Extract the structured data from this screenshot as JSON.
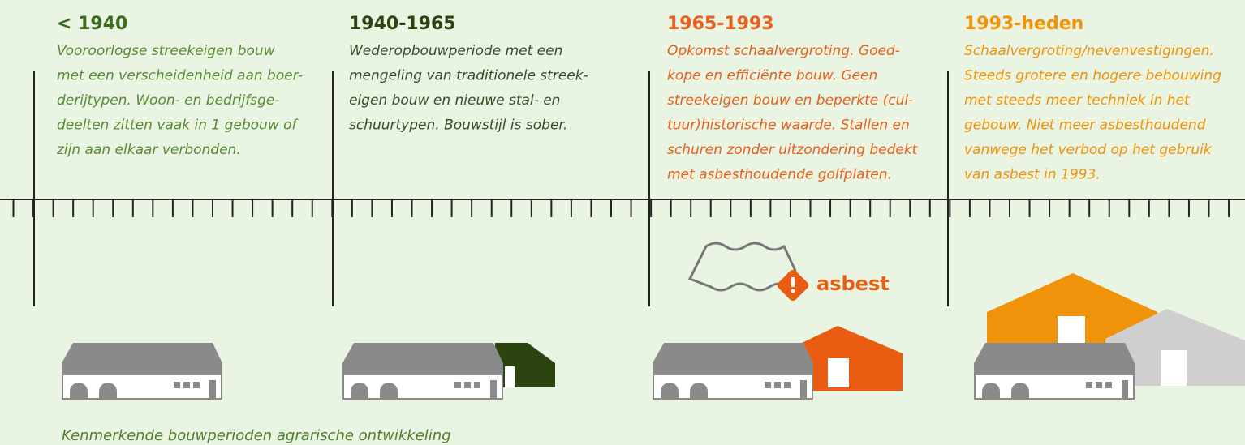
{
  "periods": [
    {
      "title": "< 1940",
      "lines": [
        "Vooroorlogse streekeigen bouw",
        "met een verscheidenheid aan boer-",
        "derijtypen. Woon- en bedrijfsge-",
        "deelten zitten vaak in 1 gebouw of",
        "zijn aan elkaar verbonden."
      ]
    },
    {
      "title": "1940-1965",
      "lines": [
        "Wederopbouwperiode met een",
        "mengeling van traditionele streek-",
        "eigen bouw en nieuwe stal- en",
        "schuurtypen. Bouwstijl is sober."
      ]
    },
    {
      "title": "1965-1993",
      "lines": [
        "Opkomst schaalvergroting. Goed-",
        "kope en efficiënte bouw. Geen",
        "streekeigen bouw en beperkte (cul-",
        "tuur)historische waarde. Stallen en",
        "schuren zonder uitzondering bedekt",
        "met asbesthoudende golfplaten."
      ]
    },
    {
      "title": "1993-heden",
      "lines": [
        "Schaalvergroting/nevenvestigingen.",
        "Steeds grotere en hogere bebouwing",
        "met steeds meer techniek in het",
        "gebouw. Niet meer asbesthoudend",
        "vanwege het verbod op het gebruik",
        "van asbest in 1993."
      ]
    }
  ],
  "asbestos_label": "asbest",
  "caption": "Kenmerkende bouwperioden agrarische ontwikkeling"
}
